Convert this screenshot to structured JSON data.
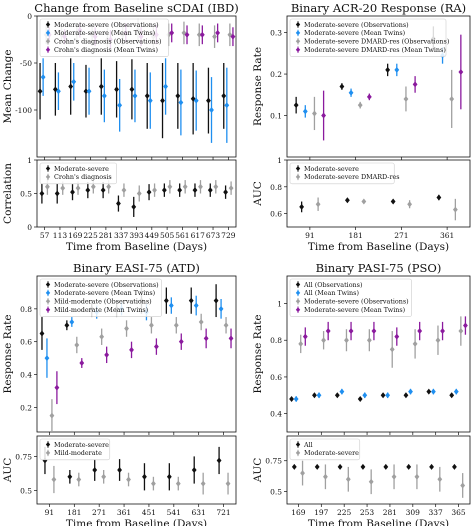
{
  "colors": {
    "black": "#111111",
    "blue": "#1f8ff0",
    "gray": "#a0a0a0",
    "purple": "#8b1a9e"
  },
  "chart_data": [
    {
      "type": "scatter",
      "title": "Change from Baseline sCDAI (IBD)",
      "xlabel": "Time from Baseline (Days)",
      "x": [
        57,
        113,
        169,
        225,
        281,
        337,
        393,
        449,
        505,
        561,
        617,
        673,
        729
      ],
      "top": {
        "ylabel": "Mean Change",
        "ylim": [
          -150,
          0
        ],
        "yticks": [
          0,
          -50,
          -100
        ],
        "legend": {
          "position": "top-left",
          "entries": [
            "Moderate-severe (Observations)",
            "Moderate-severe (Mean Twins)",
            "Crohn's diagnosis (Observations)",
            "Crohn's diagnosis (Mean Twins)"
          ]
        },
        "series": [
          {
            "name": "Moderate-severe (Observations)",
            "color": "black",
            "values": [
              -80,
              -78,
              -75,
              -80,
              -75,
              -78,
              -78,
              -85,
              -90,
              -85,
              -88,
              -90,
              -85
            ],
            "err": [
              30,
              28,
              30,
              28,
              30,
              30,
              32,
              35,
              40,
              35,
              38,
              35,
              35
            ]
          },
          {
            "name": "Moderate-severe (Mean Twins)",
            "color": "blue",
            "values": [
              -65,
              -80,
              -70,
              -80,
              -85,
              -95,
              -85,
              -90,
              -75,
              -92,
              -90,
              -100,
              -95
            ],
            "err": [
              20,
              20,
              20,
              25,
              28,
              28,
              28,
              30,
              30,
              35,
              32,
              35,
              40
            ]
          },
          {
            "name": "Crohn's diagnosis (Observations)",
            "color": "gray",
            "values": [
              -20,
              -20,
              -18,
              -20,
              -25,
              -20,
              -15,
              -22,
              -20,
              -18,
              -20,
              -22,
              -20
            ],
            "err": [
              10,
              10,
              10,
              12,
              12,
              12,
              12,
              12,
              12,
              12,
              12,
              12,
              12
            ]
          },
          {
            "name": "Crohn's diagnosis (Mean Twins)",
            "color": "purple",
            "values": [
              -20,
              -22,
              -15,
              -22,
              -25,
              -18,
              -22,
              -20,
              -18,
              -20,
              -20,
              -18,
              -22
            ],
            "err": [
              8,
              8,
              8,
              10,
              10,
              10,
              10,
              10,
              10,
              10,
              10,
              10,
              10
            ]
          }
        ]
      },
      "bottom": {
        "ylabel": "Correlation",
        "ylim": [
          0,
          1
        ],
        "yticks": [
          0,
          0.5,
          1
        ],
        "legend": {
          "position": "top-left",
          "entries": [
            "Moderate-severe",
            "Crohn's diagnosis"
          ]
        },
        "series": [
          {
            "name": "Moderate-severe",
            "color": "black",
            "values": [
              0.5,
              0.5,
              0.52,
              0.55,
              0.55,
              0.35,
              0.3,
              0.52,
              0.55,
              0.55,
              0.55,
              0.55,
              0.52
            ],
            "err": [
              0.15,
              0.15,
              0.12,
              0.12,
              0.12,
              0.12,
              0.15,
              0.12,
              0.1,
              0.1,
              0.1,
              0.1,
              0.1
            ]
          },
          {
            "name": "Crohn's diagnosis",
            "color": "gray",
            "values": [
              0.6,
              0.58,
              0.58,
              0.6,
              0.6,
              0.55,
              0.5,
              0.55,
              0.6,
              0.6,
              0.6,
              0.6,
              0.58
            ],
            "err": [
              0.12,
              0.1,
              0.1,
              0.1,
              0.1,
              0.1,
              0.12,
              0.1,
              0.1,
              0.1,
              0.1,
              0.1,
              0.1
            ]
          }
        ]
      }
    },
    {
      "type": "scatter",
      "title": "Binary ACR-20 Response (RA)",
      "xlabel": "Time from Baseline (Days)",
      "x": [
        91,
        181,
        271,
        361
      ],
      "top": {
        "ylabel": "Response Rate",
        "ylim": [
          0,
          0.34
        ],
        "yticks": [
          0.1,
          0.2,
          0.3
        ],
        "legend": {
          "position": "top-left",
          "entries": [
            "Moderate-severe (Observations)",
            "Moderate-severe (Mean Twins)",
            "Moderate-severe DMARD-res (Observations)",
            "Moderate-severe DMARD-res (Mean Twins)"
          ]
        },
        "series": [
          {
            "name": "Moderate-severe (Observations)",
            "color": "black",
            "values": [
              0.125,
              0.17,
              0.21,
              0.285
            ],
            "err": [
              0.02,
              0.008,
              0.015,
              0.03
            ]
          },
          {
            "name": "Moderate-severe (Mean Twins)",
            "color": "blue",
            "values": [
              0.11,
              0.155,
              0.21,
              0.245
            ],
            "err": [
              0.015,
              0.01,
              0.015,
              0.02
            ]
          },
          {
            "name": "Moderate-severe DMARD-res (Observations)",
            "color": "gray",
            "values": [
              0.105,
              0.125,
              0.14,
              0.14
            ],
            "err": [
              0.04,
              0.008,
              0.03,
              0.07
            ]
          },
          {
            "name": "Moderate-severe DMARD-res (Mean Twins)",
            "color": "purple",
            "values": [
              0.1,
              0.145,
              0.175,
              0.205
            ],
            "err": [
              0.06,
              0.008,
              0.02,
              0.09
            ]
          }
        ]
      },
      "bottom": {
        "ylabel": "AUC",
        "ylim": [
          0.5,
          1.0
        ],
        "yticks": [
          0.6,
          0.8,
          1.0
        ],
        "legend": {
          "position": "top-left",
          "entries": [
            "Moderate-severe",
            "Moderate-severe DMARD-res"
          ]
        },
        "series": [
          {
            "name": "Moderate-severe",
            "color": "black",
            "values": [
              0.65,
              0.7,
              0.69,
              0.72
            ],
            "err": [
              0.04,
              0.01,
              0.015,
              0.02
            ]
          },
          {
            "name": "Moderate-severe DMARD-res",
            "color": "gray",
            "values": [
              0.67,
              0.69,
              0.67,
              0.63
            ],
            "err": [
              0.05,
              0.01,
              0.03,
              0.08
            ]
          }
        ]
      }
    },
    {
      "type": "scatter",
      "title": "Binary EASI-75 (ATD)",
      "xlabel": "Time from Baseline (Days)",
      "x": [
        91,
        181,
        271,
        361,
        451,
        541,
        631,
        721
      ],
      "top": {
        "ylabel": "Response Rate",
        "ylim": [
          0.05,
          1.0
        ],
        "yticks": [
          0.2,
          0.4,
          0.6,
          0.8
        ],
        "legend": {
          "position": "top-left",
          "entries": [
            "Moderate-severe (Observations)",
            "Moderate-severe (Mean Twins)",
            "Mild-moderate (Observations)",
            "Mild-moderate (Mean Twins)"
          ]
        },
        "series": [
          {
            "name": "Moderate-severe (Observations)",
            "color": "black",
            "values": [
              0.65,
              0.7,
              0.8,
              0.8,
              0.85,
              0.85,
              0.85,
              0.85
            ],
            "err": [
              0.1,
              0.03,
              0.05,
              0.05,
              0.08,
              0.08,
              0.08,
              0.1
            ]
          },
          {
            "name": "Moderate-severe (Mean Twins)",
            "color": "blue",
            "values": [
              0.5,
              0.72,
              0.78,
              0.8,
              0.78,
              0.82,
              0.82,
              0.8
            ],
            "err": [
              0.12,
              0.03,
              0.04,
              0.04,
              0.05,
              0.05,
              0.06,
              0.06
            ]
          },
          {
            "name": "Mild-moderate (Observations)",
            "color": "gray",
            "values": [
              0.15,
              0.58,
              0.63,
              0.68,
              0.7,
              0.7,
              0.72,
              0.7
            ],
            "err": [
              0.1,
              0.05,
              0.05,
              0.05,
              0.05,
              0.05,
              0.05,
              0.05
            ]
          },
          {
            "name": "Mild-moderate (Mean Twins)",
            "color": "purple",
            "values": [
              0.32,
              0.47,
              0.52,
              0.55,
              0.57,
              0.6,
              0.62,
              0.62
            ],
            "err": [
              0.1,
              0.03,
              0.05,
              0.05,
              0.05,
              0.05,
              0.06,
              0.06
            ]
          }
        ]
      },
      "bottom": {
        "ylabel": "AUC",
        "ylim": [
          0.4,
          0.9
        ],
        "yticks": [
          0.5,
          0.75
        ],
        "legend": {
          "position": "top-left",
          "entries": [
            "Moderate-severe",
            "Mild-moderate"
          ]
        },
        "series": [
          {
            "name": "Moderate-severe",
            "color": "black",
            "values": [
              0.72,
              0.6,
              0.65,
              0.65,
              0.6,
              0.6,
              0.65,
              0.72
            ],
            "err": [
              0.1,
              0.05,
              0.08,
              0.08,
              0.1,
              0.1,
              0.1,
              0.1
            ]
          },
          {
            "name": "Mild-moderate",
            "color": "gray",
            "values": [
              0.58,
              0.58,
              0.6,
              0.58,
              0.55,
              0.55,
              0.55,
              0.55
            ],
            "err": [
              0.1,
              0.05,
              0.05,
              0.05,
              0.05,
              0.05,
              0.08,
              0.08
            ]
          }
        ]
      }
    },
    {
      "type": "scatter",
      "title": "Binary PASI-75 (PSO)",
      "xlabel": "Time from Baseline (Days)",
      "x": [
        169,
        197,
        225,
        253,
        281,
        309,
        337,
        365
      ],
      "top": {
        "ylabel": "Response Rate",
        "ylim": [
          0.3,
          1.15
        ],
        "yticks": [
          0.4,
          0.6,
          0.8,
          1.0
        ],
        "legend": {
          "position": "top-left",
          "entries": [
            "All (Observations)",
            "All (Mean Twins)",
            "Moderate-severe (Observations)",
            "Moderate-severe (Mean Twins)"
          ]
        },
        "series": [
          {
            "name": "All (Observations)",
            "color": "black",
            "values": [
              0.48,
              0.5,
              0.5,
              0.48,
              0.5,
              0.5,
              0.52,
              0.5
            ],
            "err": [
              0.01,
              0.01,
              0.01,
              0.01,
              0.01,
              0.01,
              0.01,
              0.01
            ]
          },
          {
            "name": "All (Mean Twins)",
            "color": "blue",
            "values": [
              0.48,
              0.5,
              0.52,
              0.5,
              0.5,
              0.52,
              0.52,
              0.52
            ],
            "err": [
              0.015,
              0.015,
              0.015,
              0.015,
              0.015,
              0.015,
              0.015,
              0.015
            ]
          },
          {
            "name": "Moderate-severe (Observations)",
            "color": "gray",
            "values": [
              0.78,
              0.8,
              0.8,
              0.8,
              0.75,
              0.78,
              0.8,
              0.85
            ],
            "err": [
              0.05,
              0.05,
              0.06,
              0.06,
              0.1,
              0.08,
              0.08,
              0.08
            ]
          },
          {
            "name": "Moderate-severe (Mean Twins)",
            "color": "purple",
            "values": [
              0.82,
              0.85,
              0.85,
              0.85,
              0.82,
              0.85,
              0.85,
              0.88
            ],
            "err": [
              0.05,
              0.05,
              0.05,
              0.05,
              0.05,
              0.05,
              0.05,
              0.05
            ]
          }
        ]
      },
      "bottom": {
        "ylabel": "AUC",
        "ylim": [
          0.4,
          0.95
        ],
        "yticks": [
          0.5,
          0.75
        ],
        "legend": {
          "position": "top-left",
          "entries": [
            "All",
            "Moderate-severe"
          ]
        },
        "series": [
          {
            "name": "All",
            "color": "black",
            "values": [
              0.7,
              0.7,
              0.7,
              0.7,
              0.7,
              0.7,
              0.7,
              0.7
            ],
            "err": [
              0.01,
              0.01,
              0.01,
              0.01,
              0.01,
              0.01,
              0.01,
              0.01
            ]
          },
          {
            "name": "Moderate-severe",
            "color": "gray",
            "values": [
              0.65,
              0.62,
              0.6,
              0.58,
              0.62,
              0.62,
              0.6,
              0.55
            ],
            "err": [
              0.1,
              0.1,
              0.1,
              0.1,
              0.1,
              0.1,
              0.1,
              0.1
            ]
          }
        ]
      }
    }
  ]
}
